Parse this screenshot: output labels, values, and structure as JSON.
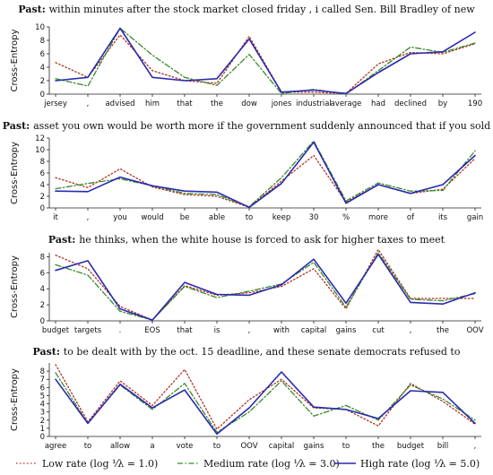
{
  "legend": [
    {
      "label": "Low rate (log ⅟λ = 1.0)",
      "color": "#b03020",
      "dash": "dotted"
    },
    {
      "label": "Medium rate (log ⅟λ = 3.0)",
      "color": "#3a8a2a",
      "dash": "dashdot"
    },
    {
      "label": "High rate (log ⅟λ = 5.0)",
      "color": "#2a2ab0",
      "dash": "solid"
    }
  ],
  "chart_data": [
    {
      "type": "line",
      "title_prefix": "Past:",
      "title": "within minutes after the stock market closed friday , i called Sen. Bill Bradley of new",
      "ylabel": "Cross-Entropy",
      "ylim": [
        0,
        10
      ],
      "yticks": [
        0,
        2,
        4,
        6,
        8,
        10
      ],
      "categories": [
        "jersey",
        ",",
        "advised",
        "him",
        "that",
        "the",
        "dow",
        "jones",
        "industrial",
        "average",
        "had",
        "declined",
        "by",
        "190"
      ],
      "series": [
        {
          "name": "Low rate",
          "values": [
            4.7,
            2.5,
            8.8,
            3.5,
            2.0,
            1.6,
            8.6,
            0.3,
            0.3,
            0.1,
            4.5,
            6.2,
            6.0,
            7.5
          ]
        },
        {
          "name": "Medium rate",
          "values": [
            2.3,
            1.2,
            9.8,
            5.8,
            2.5,
            1.3,
            5.9,
            0.1,
            0.7,
            0.0,
            3.5,
            7.0,
            6.2,
            7.6
          ]
        },
        {
          "name": "High rate",
          "values": [
            2.0,
            2.5,
            9.8,
            2.5,
            2.0,
            2.3,
            8.2,
            0.3,
            0.6,
            0.1,
            3.2,
            6.0,
            6.3,
            9.2
          ]
        }
      ]
    },
    {
      "type": "line",
      "title_prefix": "Past:",
      "title": "asset you own would be worth more if the government suddenly announced that if you sold",
      "ylabel": "Cross-Entropy",
      "ylim": [
        0,
        12
      ],
      "yticks": [
        0,
        2,
        4,
        6,
        8,
        10,
        12
      ],
      "categories": [
        "it",
        ",",
        "you",
        "would",
        "be",
        "able",
        "to",
        "keep",
        "30",
        "%",
        "more",
        "of",
        "its",
        "gain"
      ],
      "series": [
        {
          "name": "Low rate",
          "values": [
            5.2,
            3.5,
            6.7,
            3.6,
            2.3,
            2.0,
            0.1,
            4.6,
            9.0,
            1.0,
            4.0,
            2.5,
            3.2,
            8.5
          ]
        },
        {
          "name": "Medium rate",
          "values": [
            3.3,
            4.2,
            5.0,
            3.8,
            2.5,
            2.3,
            0.2,
            5.2,
            11.5,
            1.2,
            4.3,
            2.9,
            3.0,
            9.8
          ]
        },
        {
          "name": "High rate",
          "values": [
            2.9,
            2.8,
            5.3,
            3.8,
            2.9,
            2.7,
            0.1,
            4.2,
            11.3,
            0.8,
            4.0,
            2.5,
            4.0,
            9.0
          ]
        }
      ]
    },
    {
      "type": "line",
      "title_prefix": "Past:",
      "title": "he thinks, when the white house is forced to ask for higher taxes to meet",
      "ylabel": "Cross-Entropy",
      "ylim": [
        0,
        8.5
      ],
      "yticks": [
        0,
        2,
        4,
        6,
        8
      ],
      "categories": [
        "budget",
        "targets",
        ".",
        "EOS",
        "that",
        "is",
        ",",
        "with",
        "capital",
        "gains",
        "cut",
        ",",
        "the",
        "OOV"
      ],
      "series": [
        {
          "name": "Low rate",
          "values": [
            8.2,
            6.5,
            1.8,
            0.1,
            4.4,
            3.2,
            3.5,
            4.3,
            6.5,
            1.5,
            8.9,
            2.8,
            2.8,
            2.8
          ]
        },
        {
          "name": "Medium rate",
          "values": [
            7.0,
            5.7,
            1.2,
            0.1,
            4.3,
            2.9,
            3.7,
            4.6,
            7.3,
            1.7,
            8.5,
            2.7,
            2.5,
            3.4
          ]
        },
        {
          "name": "High rate",
          "values": [
            6.3,
            7.5,
            1.5,
            0.1,
            4.8,
            3.3,
            3.2,
            4.5,
            7.7,
            2.2,
            8.3,
            2.3,
            2.1,
            3.5
          ]
        }
      ]
    },
    {
      "type": "line",
      "title_prefix": "Past:",
      "title": "to be dealt with by the oct. 15 deadline, and these senate democrats refused to",
      "ylabel": "Cross-Entropy",
      "ylim": [
        0,
        9
      ],
      "yticks": [
        0,
        1,
        2,
        3,
        4,
        5,
        6,
        7,
        8
      ],
      "categories": [
        "agree",
        "to",
        "allow",
        "a",
        "vote",
        "to",
        "OOV",
        "capital",
        "gains",
        "to",
        "the",
        "budget",
        "bill",
        ","
      ],
      "series": [
        {
          "name": "Low rate",
          "values": [
            8.8,
            1.8,
            6.8,
            3.8,
            8.2,
            0.9,
            4.5,
            7.0,
            3.5,
            3.3,
            1.3,
            6.5,
            4.3,
            1.5
          ]
        },
        {
          "name": "Medium rate",
          "values": [
            7.8,
            1.6,
            6.3,
            3.3,
            6.5,
            0.5,
            3.0,
            6.8,
            2.5,
            3.8,
            2.0,
            6.3,
            4.6,
            2.0
          ]
        },
        {
          "name": "High rate",
          "values": [
            7.0,
            1.6,
            6.4,
            3.5,
            5.7,
            0.3,
            3.5,
            7.9,
            3.6,
            3.3,
            2.2,
            5.6,
            5.4,
            1.6
          ]
        }
      ]
    }
  ]
}
